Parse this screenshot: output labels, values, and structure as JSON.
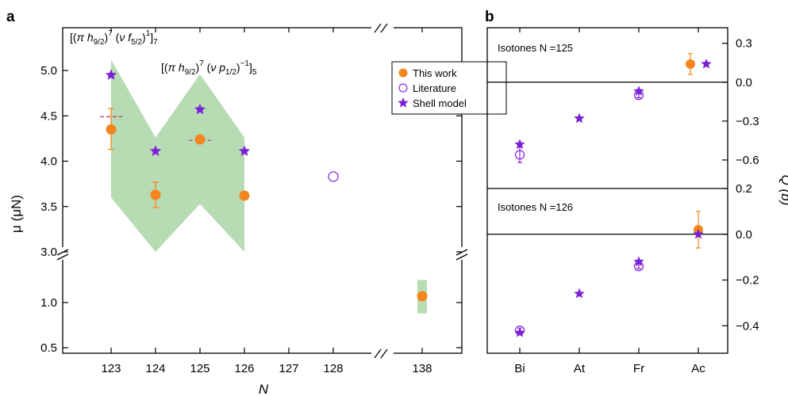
{
  "panel_labels": {
    "a": "a",
    "b": "b"
  },
  "annotations": {
    "config1": "[(π h9/2)7 (ν f5/2)1]7",
    "config2": "[(π h9/2)7 (ν p1/2)−1]5"
  },
  "legend": {
    "this_work": "This work",
    "literature": "Literature",
    "shell_model": "Shell model"
  },
  "colors": {
    "this_work": "#f5861f",
    "literature": "#8a2be2",
    "shell_model": "#7b22d8",
    "band": "#b7dbb2",
    "dashed": "#c0306a"
  },
  "chart_data": [
    {
      "panel": "a",
      "type": "scatter",
      "xlabel": "N",
      "ylabel": "μ (μN)",
      "x_ticks": [
        "123",
        "124",
        "125",
        "126",
        "127",
        "128",
        "138"
      ],
      "axis_break": {
        "x_between": [
          128,
          138
        ],
        "y_between": [
          1.5,
          3.0
        ]
      },
      "y_ticks_upper": [
        "3.0",
        "3.5",
        "4.0",
        "4.5",
        "5.0"
      ],
      "y_ticks_lower": [
        "0.5",
        "1.0"
      ],
      "ylim_upper": [
        3.0,
        5.45
      ],
      "ylim_lower": [
        0.5,
        1.5
      ],
      "series": [
        {
          "name": "This work",
          "x": [
            123,
            124,
            125,
            126,
            138
          ],
          "y": [
            4.35,
            3.63,
            4.24,
            3.62,
            1.07
          ],
          "err_low": [
            0.22,
            0.14,
            0.03,
            0.02,
            0.02
          ],
          "err_high": [
            0.23,
            0.14,
            0.03,
            0.02,
            0.02
          ]
        },
        {
          "name": "Literature",
          "x": [
            128
          ],
          "y": [
            3.83
          ]
        },
        {
          "name": "Shell model",
          "x": [
            123,
            124,
            125,
            126
          ],
          "y": [
            4.95,
            4.11,
            4.57,
            4.11
          ]
        }
      ],
      "shell_model_range": {
        "x": [
          123,
          124,
          125,
          126
        ],
        "low": [
          3.6,
          3.0,
          3.53,
          3.0
        ],
        "high": [
          5.12,
          4.26,
          4.96,
          4.26
        ]
      },
      "shell_model_range_138": {
        "x": 138,
        "low": 0.88,
        "high": 1.25
      },
      "dashed_lines": [
        {
          "x": [
            122.75,
            123.25
          ],
          "y": 4.49
        },
        {
          "x": [
            124.75,
            125.25
          ],
          "y": 4.23
        }
      ]
    },
    {
      "panel": "b",
      "type": "scatter",
      "categories": [
        "Bi",
        "At",
        "Fr",
        "Ac"
      ],
      "ylabel": "Q (b)",
      "subpanels": [
        {
          "title": "Isotones N =125",
          "ylim": [
            -0.82,
            0.42
          ],
          "y_ticks": [
            "0.3",
            "0.0",
            "−0.3",
            "−0.6"
          ],
          "series": [
            {
              "name": "This work",
              "x": [
                "Ac"
              ],
              "y": [
                0.14
              ],
              "err": [
                0.08
              ]
            },
            {
              "name": "Literature",
              "x": [
                "Bi",
                "Fr"
              ],
              "y": [
                -0.56,
                -0.1
              ],
              "err": [
                0.06,
                0.02
              ]
            },
            {
              "name": "Shell model",
              "x": [
                "Bi",
                "At",
                "Fr",
                "Ac"
              ],
              "y": [
                -0.48,
                -0.28,
                -0.07,
                0.14
              ]
            }
          ]
        },
        {
          "title": "Isotones N =126",
          "ylim": [
            -0.52,
            0.2
          ],
          "y_ticks": [
            "0.2",
            "0.0",
            "−0.2",
            "−0.4"
          ],
          "series": [
            {
              "name": "This work",
              "x": [
                "Ac"
              ],
              "y": [
                0.02
              ],
              "err": [
                0.08
              ]
            },
            {
              "name": "Literature",
              "x": [
                "Bi",
                "Fr"
              ],
              "y": [
                -0.42,
                -0.14
              ],
              "err": [
                0.01,
                0.01
              ]
            },
            {
              "name": "Shell model",
              "x": [
                "Bi",
                "At",
                "Fr",
                "Ac"
              ],
              "y": [
                -0.43,
                -0.26,
                -0.12,
                0.0
              ]
            }
          ]
        }
      ]
    }
  ]
}
